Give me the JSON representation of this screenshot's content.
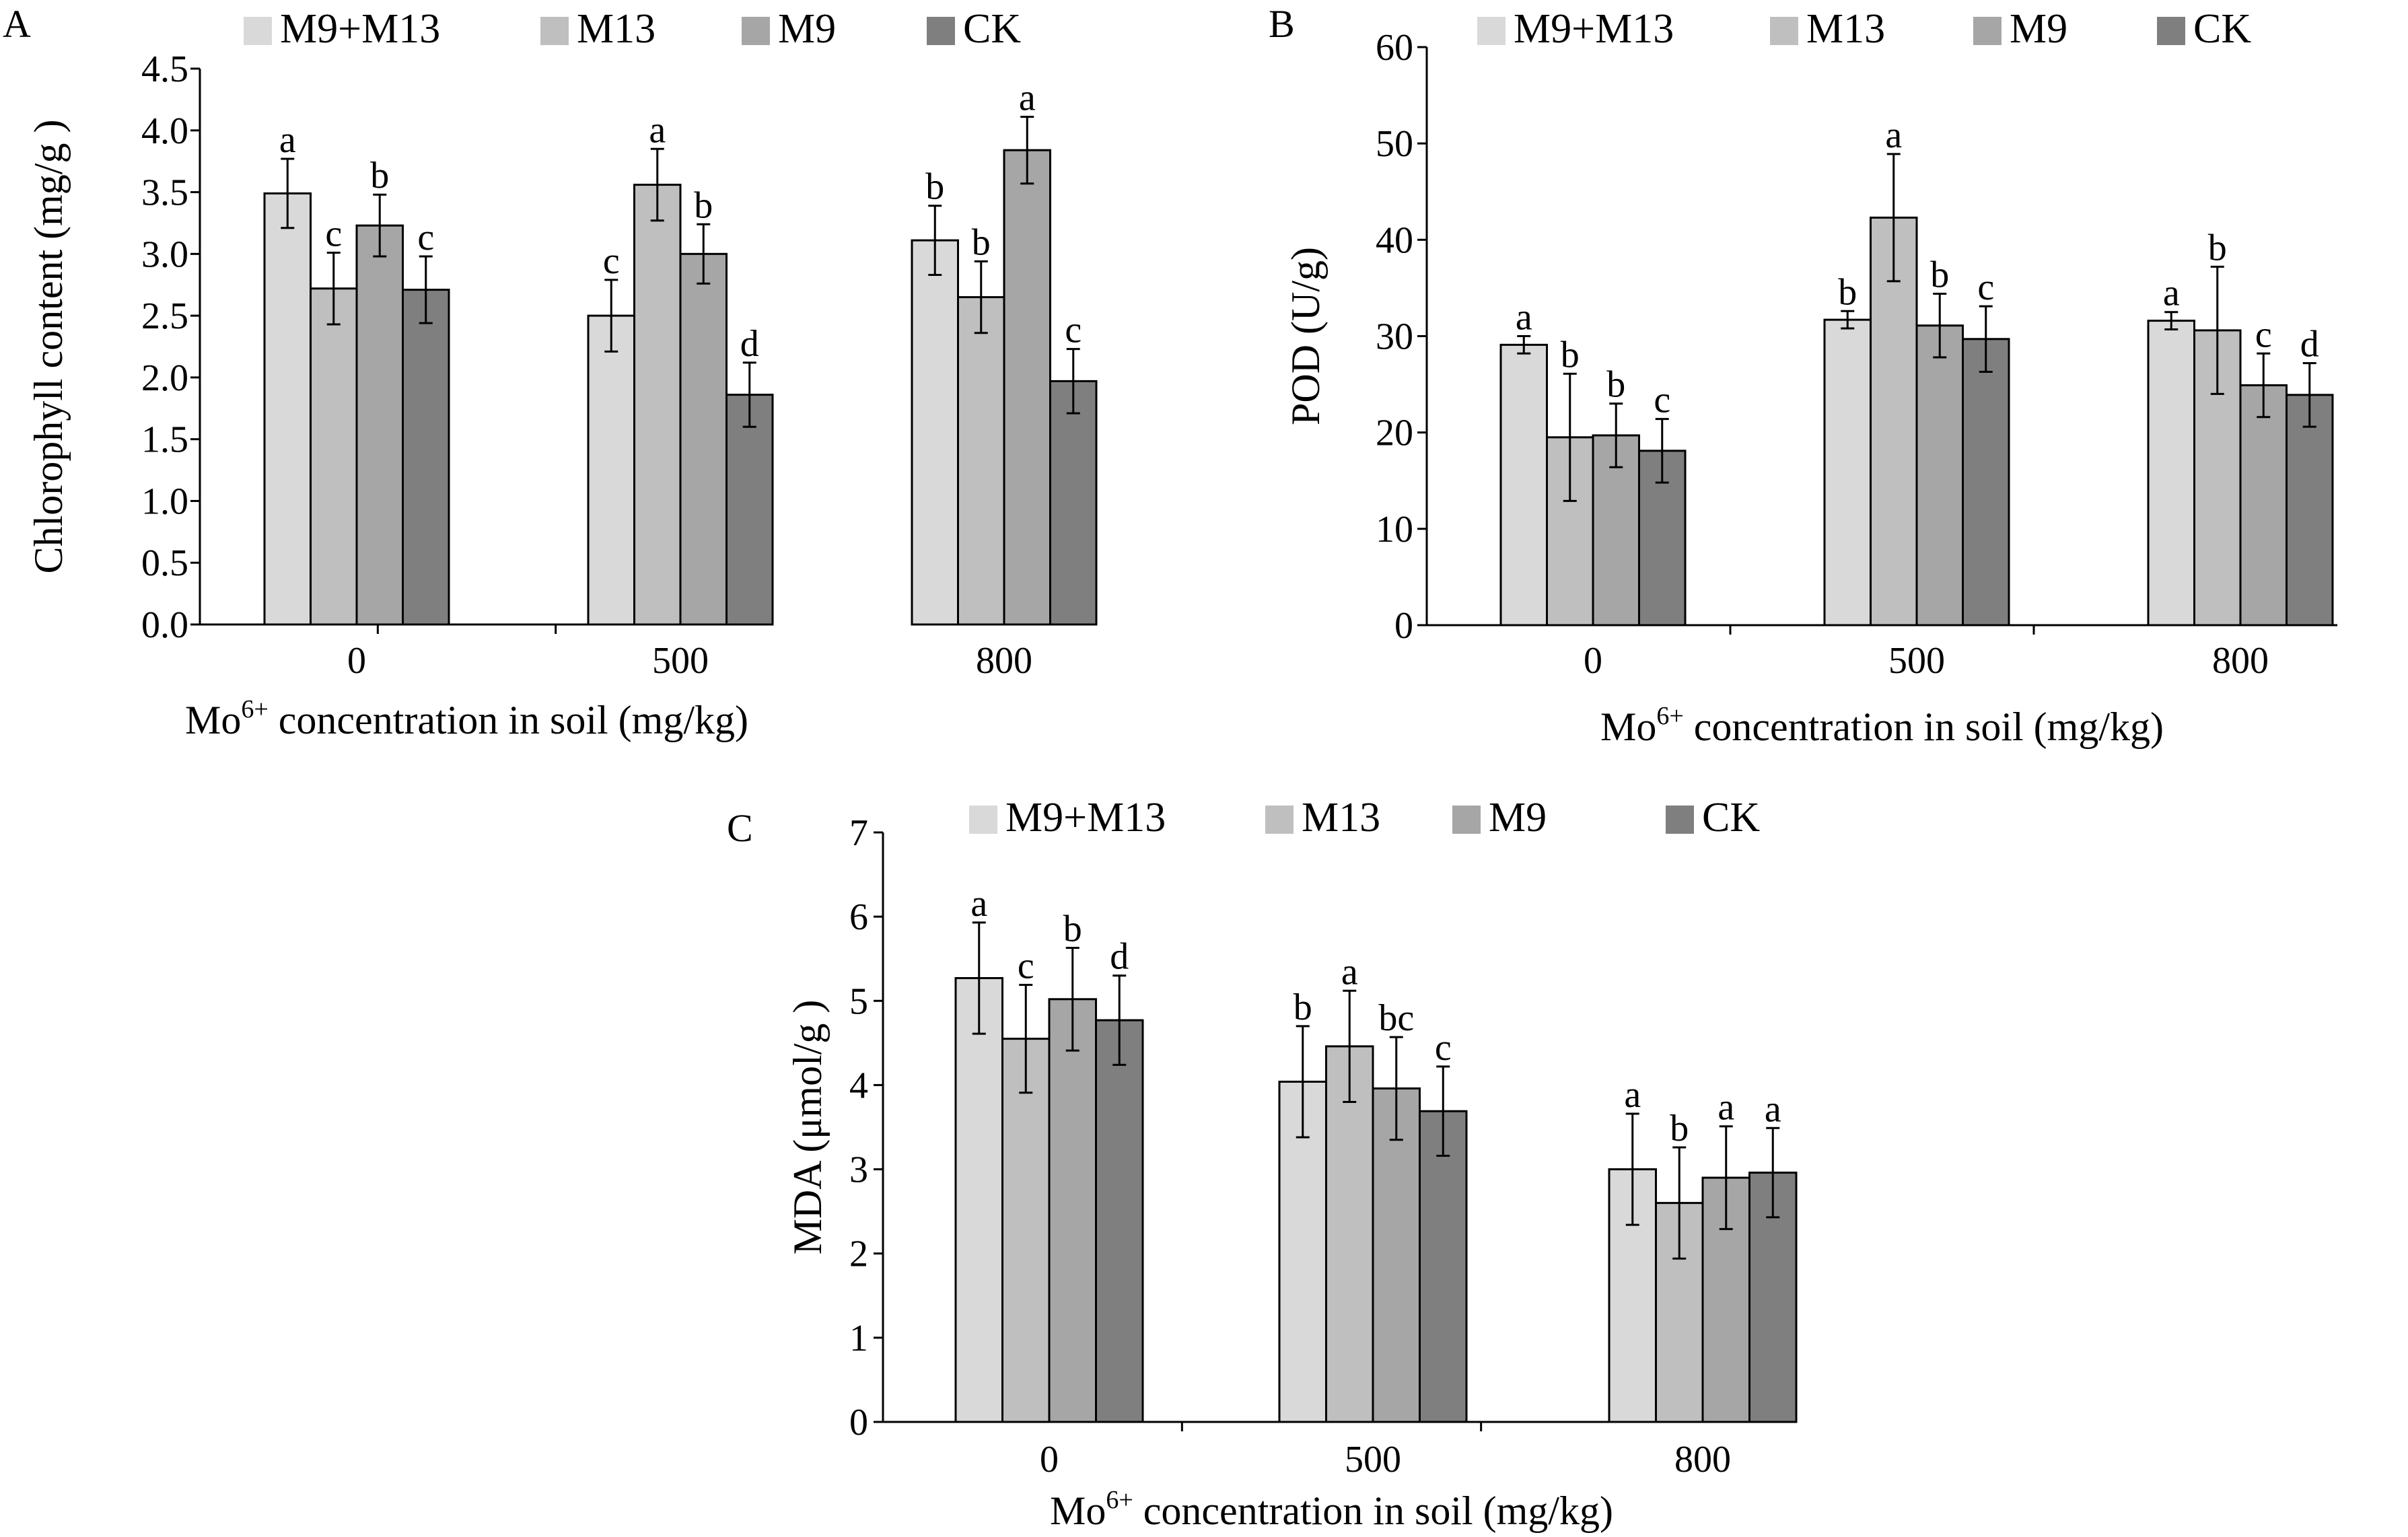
{
  "colors": {
    "M9+M13": "#d9d9d9",
    "M13": "#bfbfbf",
    "M9": "#a6a6a6",
    "CK": "#7f7f7f",
    "bar_stroke": "#000000"
  },
  "chart_data": [
    {
      "type": "bar",
      "panel_label": "A",
      "categories": [
        "0",
        "500",
        "800"
      ],
      "xlabel": {
        "prefix": "Mo",
        "superscript": "6+",
        "suffix": " concentration in soil (mg/kg)"
      },
      "ylabel": "Chlorophyll content (mg/g )",
      "ylim": [
        0,
        4.5
      ],
      "yticks": [
        "0.0",
        "0.5",
        "1.0",
        "1.5",
        "2.0",
        "2.5",
        "3.0",
        "3.5",
        "4.0",
        "4.5"
      ],
      "legend": [
        "M9+M13",
        "M13",
        "M9",
        "CK"
      ],
      "series": [
        {
          "name": "M9+M13",
          "values": [
            3.49,
            2.5,
            3.11
          ],
          "errors": [
            0.28,
            0.29,
            0.28
          ],
          "letters": [
            "a",
            "c",
            "b"
          ]
        },
        {
          "name": "M13",
          "values": [
            2.72,
            3.56,
            2.65
          ],
          "errors": [
            0.29,
            0.29,
            0.29
          ],
          "letters": [
            "c",
            "a",
            "b"
          ]
        },
        {
          "name": "M9",
          "values": [
            3.23,
            3.0,
            3.84
          ],
          "errors": [
            0.25,
            0.24,
            0.27
          ],
          "letters": [
            "b",
            "b",
            "a"
          ]
        },
        {
          "name": "CK",
          "values": [
            2.71,
            1.86,
            1.97
          ],
          "errors": [
            0.27,
            0.26,
            0.26
          ],
          "letters": [
            "c",
            "d",
            "c"
          ]
        }
      ]
    },
    {
      "type": "bar",
      "panel_label": "B",
      "categories": [
        "0",
        "500",
        "800"
      ],
      "xlabel": {
        "prefix": "Mo",
        "superscript": "6+",
        "suffix": " concentration in soil (mg/kg)"
      },
      "ylabel": "POD (U/g)",
      "ylim": [
        0,
        60
      ],
      "yticks": [
        "0",
        "10",
        "20",
        "30",
        "40",
        "50",
        "60"
      ],
      "legend": [
        "M9+M13",
        "M13",
        "M9",
        "CK"
      ],
      "series": [
        {
          "name": "M9+M13",
          "values": [
            29.1,
            31.7,
            31.6
          ],
          "errors": [
            0.9,
            0.9,
            0.9
          ],
          "letters": [
            "a",
            "b",
            "a"
          ]
        },
        {
          "name": "M13",
          "values": [
            19.5,
            42.3,
            30.6
          ],
          "errors": [
            6.6,
            6.6,
            6.6
          ],
          "letters": [
            "b",
            "a",
            "b"
          ]
        },
        {
          "name": "M9",
          "values": [
            19.7,
            31.1,
            24.9
          ],
          "errors": [
            3.3,
            3.3,
            3.3
          ],
          "letters": [
            "b",
            "b",
            "c"
          ]
        },
        {
          "name": "CK",
          "values": [
            18.1,
            29.7,
            23.9
          ],
          "errors": [
            3.3,
            3.4,
            3.3
          ],
          "letters": [
            "c",
            "c",
            "d"
          ]
        }
      ]
    },
    {
      "type": "bar",
      "panel_label": "C",
      "categories": [
        "0",
        "500",
        "800"
      ],
      "xlabel": {
        "prefix": "Mo",
        "superscript": "6+",
        "suffix": " concentration in soil (mg/kg)"
      },
      "ylabel": "MDA (μmol/g )",
      "ylim": [
        0,
        7
      ],
      "yticks": [
        "0",
        "1",
        "2",
        "3",
        "4",
        "5",
        "6",
        "7"
      ],
      "legend": [
        "M9+M13",
        "M13",
        "M9",
        "CK"
      ],
      "series": [
        {
          "name": "M9+M13",
          "values": [
            5.27,
            4.04,
            3.0
          ],
          "errors": [
            0.66,
            0.66,
            0.66
          ],
          "letters": [
            "a",
            "b",
            "a"
          ]
        },
        {
          "name": "M13",
          "values": [
            4.55,
            4.46,
            2.6
          ],
          "errors": [
            0.64,
            0.66,
            0.66
          ],
          "letters": [
            "c",
            "a",
            "b"
          ]
        },
        {
          "name": "M9",
          "values": [
            5.02,
            3.96,
            2.9
          ],
          "errors": [
            0.61,
            0.61,
            0.61
          ],
          "letters": [
            "b",
            "bc",
            "a"
          ]
        },
        {
          "name": "CK",
          "values": [
            4.77,
            3.69,
            2.96
          ],
          "errors": [
            0.53,
            0.53,
            0.53
          ],
          "letters": [
            "d",
            "c",
            "a"
          ]
        }
      ]
    }
  ]
}
